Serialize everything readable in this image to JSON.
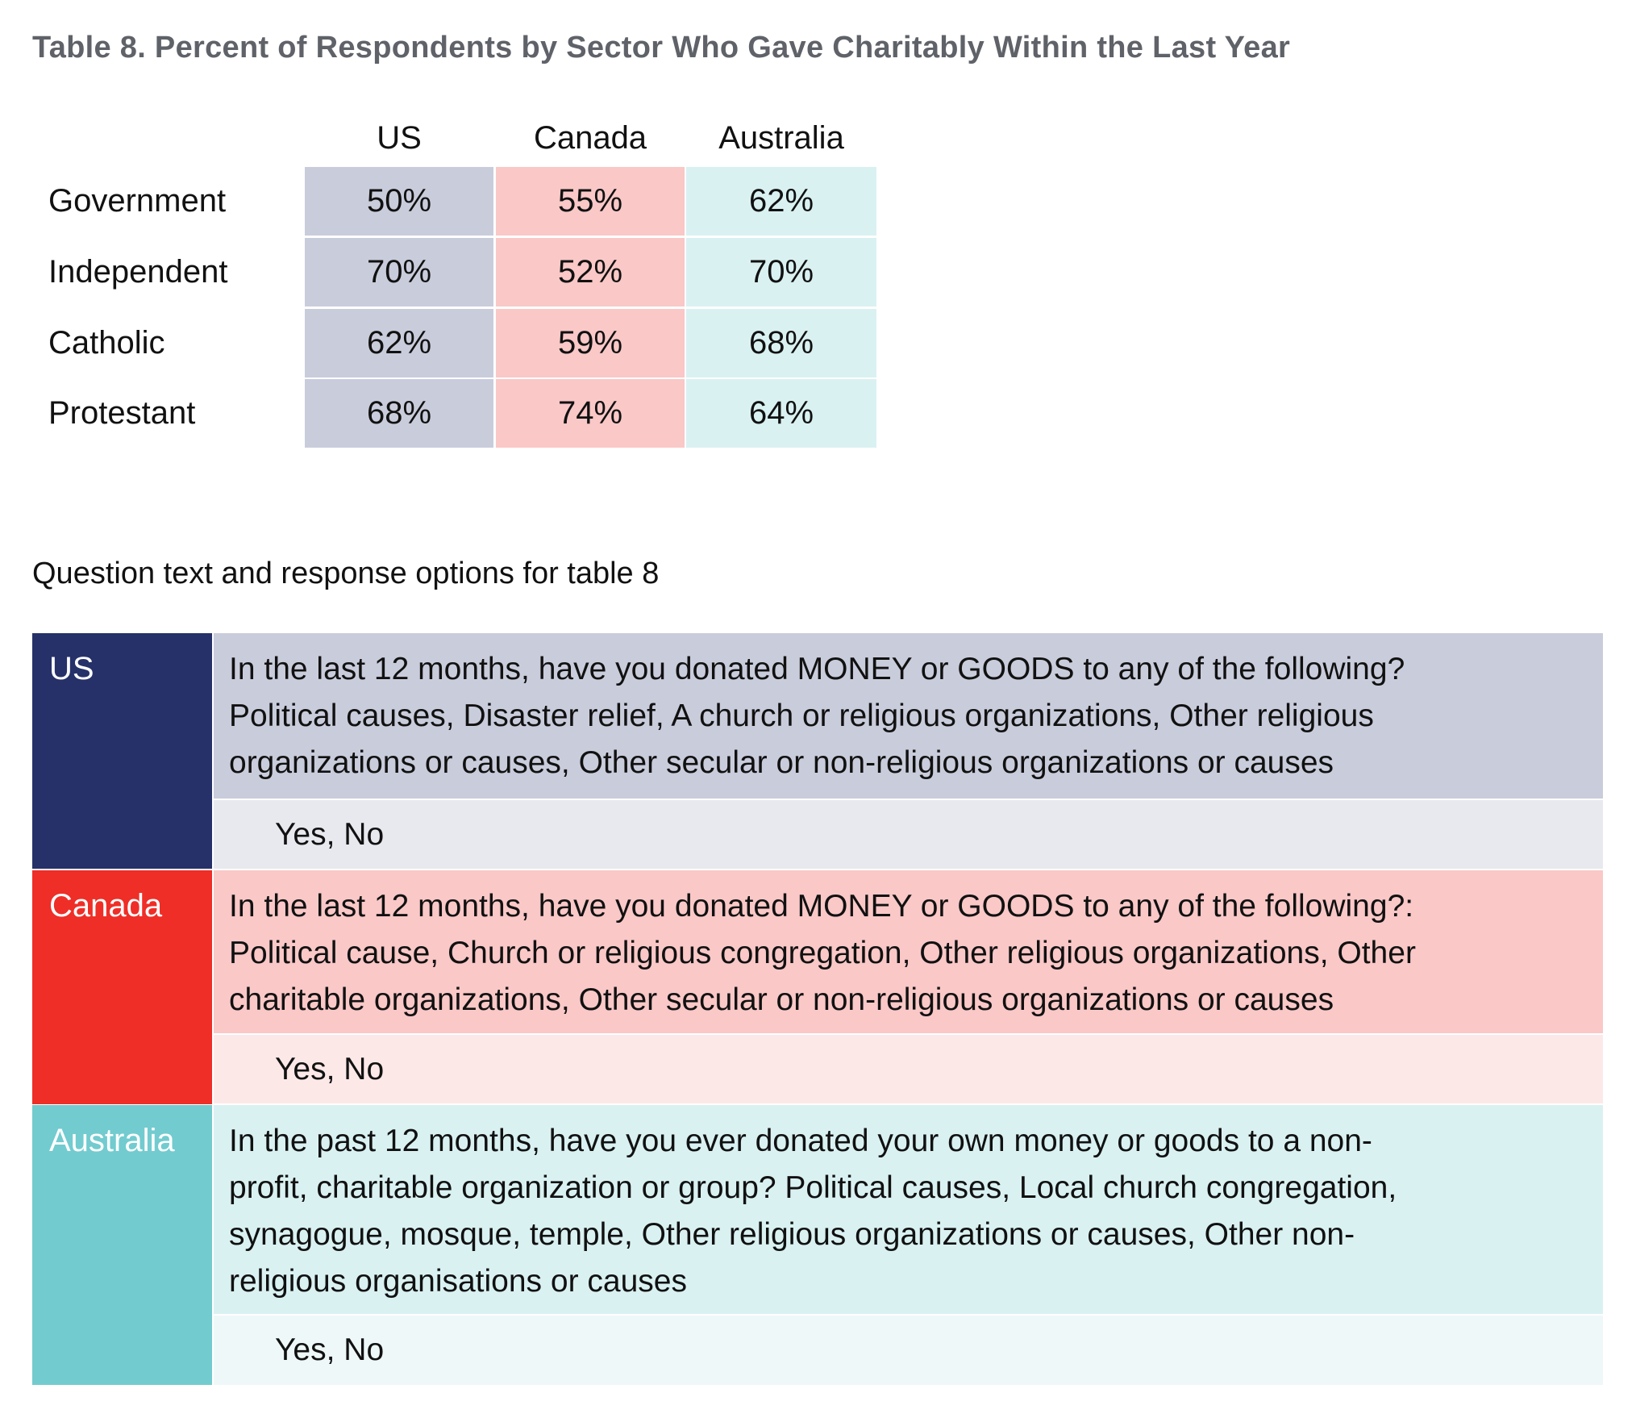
{
  "title": "Table 8. Percent of Respondents by Sector Who Gave Charitably Within the Last Year",
  "summary_table": {
    "columns": [
      "US",
      "Canada",
      "Australia"
    ],
    "rows": [
      {
        "label": "Government",
        "values": [
          "50%",
          "55%",
          "62%"
        ]
      },
      {
        "label": "Independent",
        "values": [
          "70%",
          "52%",
          "70%"
        ]
      },
      {
        "label": "Catholic",
        "values": [
          "62%",
          "59%",
          "68%"
        ]
      },
      {
        "label": "Protestant",
        "values": [
          "68%",
          "74%",
          "64%"
        ]
      }
    ]
  },
  "subtitle": "Question text and response options for table 8",
  "questions": [
    {
      "country": "US",
      "color": "#263169",
      "lines": [
        "In the last 12 months, have you donated MONEY or GOODS to any of the following?",
        "Political causes, Disaster relief, A church or religious organizations, Other religious",
        "organizations or causes, Other secular or non-religious organizations or causes"
      ],
      "options": "Yes, No"
    },
    {
      "country": "Canada",
      "color": "#ee2e27",
      "lines": [
        "In the last 12 months, have you donated MONEY or GOODS to any of the following?:",
        "Political cause, Church or religious congregation, Other religious organizations, Other",
        "charitable organizations, Other secular or non-religious organizations or causes"
      ],
      "options": "Yes, No"
    },
    {
      "country": "Australia",
      "color": "#72cbcf",
      "lines": [
        "In the past 12 months, have you ever donated your own money or goods to a non-",
        "profit, charitable organization or group? Political causes, Local church congregation,",
        "synagogue, mosque, temple, Other religious organizations or causes, Other non-",
        "religious organisations or causes"
      ],
      "options": "Yes, No"
    }
  ]
}
